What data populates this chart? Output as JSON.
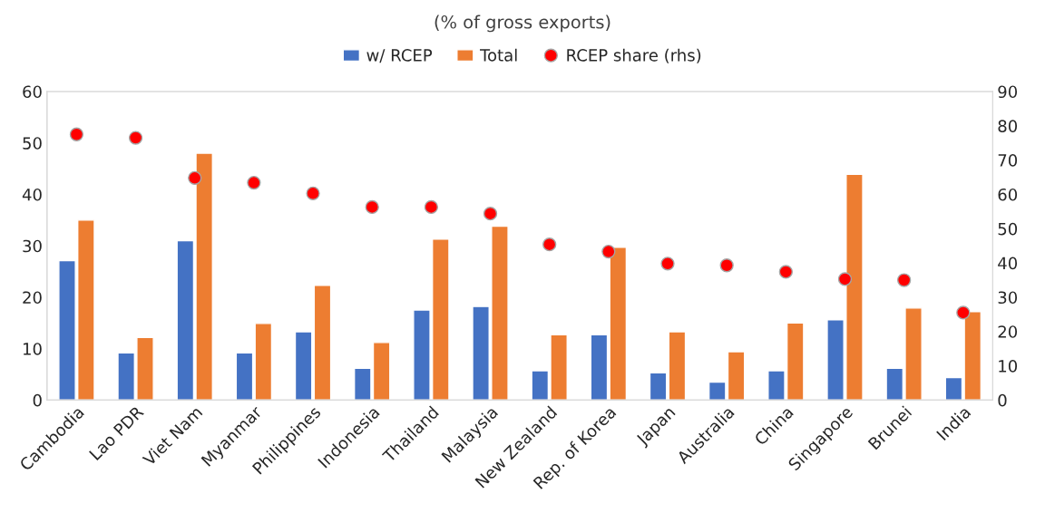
{
  "chart_data": {
    "type": "bar",
    "title": "(% of gross exports)",
    "categories": [
      "Cambodia",
      "Lao PDR",
      "Viet Nam",
      "Myanmar",
      "Philippines",
      "Indonesia",
      "Thailand",
      "Malaysia",
      "New Zealand",
      "Rep. of Korea",
      "Japan",
      "Australia",
      "China",
      "Singapore",
      "Brunei",
      "India"
    ],
    "series": [
      {
        "name": "w/ RCEP",
        "color": "#4472c4",
        "values": [
          27.1,
          9.2,
          31.0,
          9.2,
          13.3,
          6.2,
          17.5,
          18.2,
          5.7,
          12.7,
          5.3,
          3.5,
          5.7,
          15.6,
          6.2,
          4.4
        ]
      },
      {
        "name": "Total",
        "color": "#ed7d31",
        "values": [
          35.0,
          12.2,
          48.0,
          14.9,
          22.3,
          11.2,
          31.3,
          33.8,
          12.7,
          29.7,
          13.3,
          9.4,
          15.0,
          43.9,
          17.9,
          17.2
        ]
      },
      {
        "name": "RCEP share (rhs)",
        "color": "#ff0000",
        "type": "scatter",
        "axis": "y2",
        "marker": "circle",
        "values": [
          77.5,
          76.5,
          64.8,
          63.4,
          60.3,
          56.3,
          56.3,
          54.4,
          45.4,
          43.3,
          39.8,
          39.3,
          37.4,
          35.3,
          35.0,
          25.5
        ]
      }
    ],
    "ylim": [
      0,
      60
    ],
    "yticks": [
      0,
      10,
      20,
      30,
      40,
      50,
      60
    ],
    "y2lim": [
      0,
      90
    ],
    "y2ticks": [
      0,
      10,
      20,
      30,
      40,
      50,
      60,
      70,
      80,
      90
    ],
    "grid": false,
    "legend": "top"
  }
}
